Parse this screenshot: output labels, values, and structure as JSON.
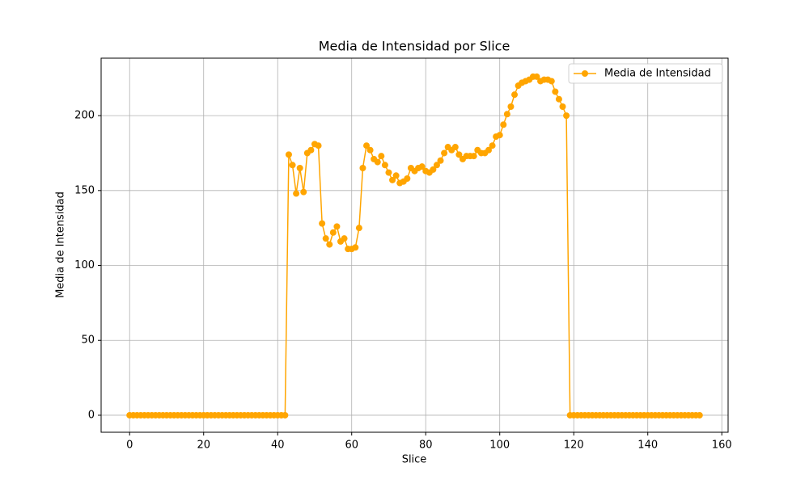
{
  "chart_data": {
    "type": "line",
    "title": "Media de Intensidad por Slice",
    "xlabel": "Slice",
    "ylabel": "Media de Intensidad",
    "x": [
      0,
      1,
      2,
      3,
      4,
      5,
      6,
      7,
      8,
      9,
      10,
      11,
      12,
      13,
      14,
      15,
      16,
      17,
      18,
      19,
      20,
      21,
      22,
      23,
      24,
      25,
      26,
      27,
      28,
      29,
      30,
      31,
      32,
      33,
      34,
      35,
      36,
      37,
      38,
      39,
      40,
      41,
      42,
      43,
      44,
      45,
      46,
      47,
      48,
      49,
      50,
      51,
      52,
      53,
      54,
      55,
      56,
      57,
      58,
      59,
      60,
      61,
      62,
      63,
      64,
      65,
      66,
      67,
      68,
      69,
      70,
      71,
      72,
      73,
      74,
      75,
      76,
      77,
      78,
      79,
      80,
      81,
      82,
      83,
      84,
      85,
      86,
      87,
      88,
      89,
      90,
      91,
      92,
      93,
      94,
      95,
      96,
      97,
      98,
      99,
      100,
      101,
      102,
      103,
      104,
      105,
      106,
      107,
      108,
      109,
      110,
      111,
      112,
      113,
      114,
      115,
      116,
      117,
      118,
      119,
      120,
      121,
      122,
      123,
      124,
      125,
      126,
      127,
      128,
      129,
      130,
      131,
      132,
      133,
      134,
      135,
      136,
      137,
      138,
      139,
      140,
      141,
      142,
      143,
      144,
      145,
      146,
      147,
      148,
      149,
      150,
      151,
      152,
      153,
      154
    ],
    "series": [
      {
        "name": "Media de Intensidad",
        "color": "#ffa500",
        "values": [
          0,
          0,
          0,
          0,
          0,
          0,
          0,
          0,
          0,
          0,
          0,
          0,
          0,
          0,
          0,
          0,
          0,
          0,
          0,
          0,
          0,
          0,
          0,
          0,
          0,
          0,
          0,
          0,
          0,
          0,
          0,
          0,
          0,
          0,
          0,
          0,
          0,
          0,
          0,
          0,
          0,
          0,
          0,
          174,
          167,
          148,
          165,
          149,
          175,
          177,
          181,
          180,
          128,
          118,
          114,
          122,
          126,
          116,
          118,
          111,
          111,
          112,
          125,
          165,
          180,
          177,
          171,
          169,
          173,
          167,
          162,
          157,
          160,
          155,
          156,
          158,
          165,
          163,
          165,
          166,
          163,
          162,
          164,
          167,
          170,
          175,
          179,
          177,
          179,
          174,
          171,
          173,
          173,
          173,
          177,
          175,
          175,
          177,
          180,
          186,
          187,
          194,
          201,
          206,
          214,
          220,
          222,
          223,
          224,
          226,
          226,
          223,
          224,
          224,
          223,
          216,
          211,
          206,
          200,
          0,
          0,
          0,
          0,
          0,
          0,
          0,
          0,
          0,
          0,
          0,
          0,
          0,
          0,
          0,
          0,
          0,
          0,
          0,
          0,
          0,
          0,
          0,
          0,
          0,
          0,
          0,
          0,
          0,
          0,
          0,
          0,
          0,
          0,
          0,
          0
        ]
      }
    ],
    "xlim": [
      -7.7,
      161.7
    ],
    "ylim": [
      -11.35,
      238.35
    ],
    "xticks": [
      0,
      20,
      40,
      60,
      80,
      100,
      120,
      140,
      160
    ],
    "yticks": [
      0,
      50,
      100,
      150,
      200
    ],
    "grid": true,
    "legend": "upper right"
  }
}
